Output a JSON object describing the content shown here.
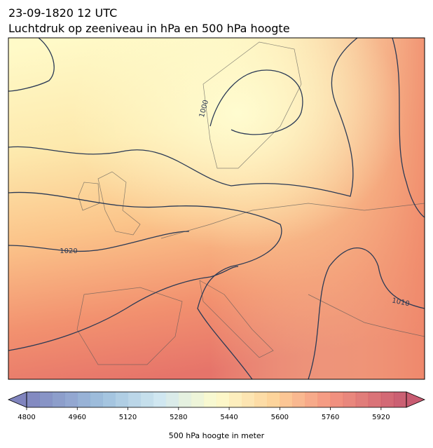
{
  "header": {
    "date": "23-09-1820 12 UTC",
    "title": "Luchtdruk op zeeniveau in hPa en 500 hPa hoogte"
  },
  "isobar_labels": [
    "1020",
    "1010",
    "1000"
  ],
  "colorbar": {
    "label": "500 hPa hoogte in meter",
    "range": [
      4800,
      6000
    ],
    "ticks": [
      4800,
      4960,
      5120,
      5280,
      5440,
      5600,
      5760,
      5920
    ],
    "levels": [
      4800,
      4840,
      4880,
      4920,
      4960,
      5000,
      5040,
      5080,
      5120,
      5160,
      5200,
      5240,
      5280,
      5320,
      5360,
      5400,
      5440,
      5480,
      5520,
      5560,
      5600,
      5640,
      5680,
      5720,
      5760,
      5800,
      5840,
      5880,
      5920,
      5960,
      6000
    ],
    "extend": "both"
  }
}
